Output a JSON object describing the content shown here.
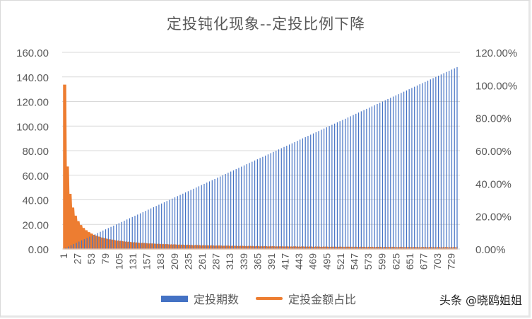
{
  "chart_data": {
    "type": "bar+area",
    "title": "定投钝化现象--定投比例下降",
    "xlabel": "",
    "ylabel_left": "",
    "ylabel_right": "",
    "left_axis": {
      "ticks": [
        "160.00",
        "140.00",
        "120.00",
        "100.00",
        "80.00",
        "60.00",
        "40.00",
        "20.00",
        "0.00"
      ],
      "ylim": [
        0,
        160
      ]
    },
    "right_axis": {
      "ticks": [
        "120.00%",
        "100.00%",
        "80.00%",
        "60.00%",
        "40.00%",
        "20.00%",
        "0.00%"
      ],
      "ylim": [
        0,
        1.2
      ]
    },
    "x_ticks": [
      "1",
      "27",
      "53",
      "79",
      "105",
      "131",
      "157",
      "183",
      "209",
      "235",
      "261",
      "287",
      "313",
      "339",
      "365",
      "391",
      "417",
      "443",
      "469",
      "495",
      "521",
      "547",
      "573",
      "599",
      "625",
      "651",
      "677",
      "703",
      "729"
    ],
    "x_range": [
      1,
      740
    ],
    "grid": true,
    "legend_position": "bottom",
    "series": [
      {
        "name": "定投期数",
        "type": "bar",
        "axis": "left",
        "color": "#4472c4",
        "description": "Period count grows linearly; approx value = period/5, reaching ~148 at period ~740",
        "sample_x": [
          1,
          79,
          157,
          235,
          313,
          391,
          469,
          547,
          625,
          703,
          740
        ],
        "sample_values": [
          0.2,
          15.8,
          31.4,
          47.0,
          62.6,
          78.2,
          93.8,
          109.4,
          125.0,
          140.6,
          148
        ]
      },
      {
        "name": "定投金额占比",
        "type": "area",
        "axis": "right",
        "color": "#ed7d31",
        "description": "Share of latest contribution in total invested, decays roughly as 1/n (stepped)",
        "sample_x": [
          1,
          6,
          11,
          16,
          21,
          27,
          40,
          53,
          79,
          105,
          157,
          235,
          313,
          417,
          521,
          729
        ],
        "sample_values": [
          1.0,
          0.5,
          0.333,
          0.25,
          0.2,
          0.167,
          0.12,
          0.09,
          0.06,
          0.045,
          0.032,
          0.021,
          0.016,
          0.012,
          0.0096,
          0.0068
        ]
      }
    ]
  },
  "legend": {
    "items": [
      {
        "label": "定投期数",
        "color": "#4472c4"
      },
      {
        "label": "定投金额占比",
        "color": "#ed7d31"
      }
    ]
  },
  "watermark": "头条 @晓鸥姐姐"
}
